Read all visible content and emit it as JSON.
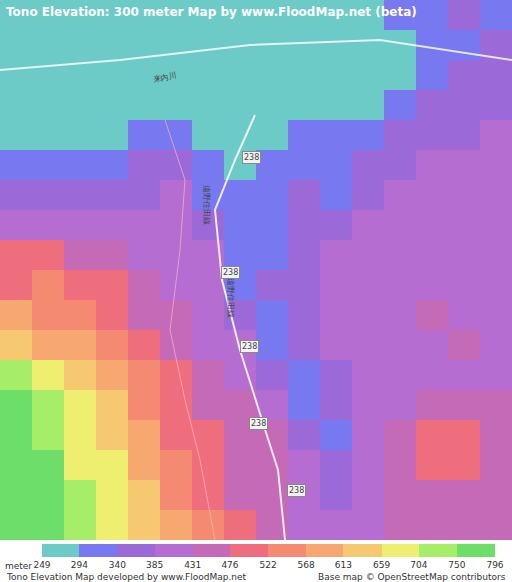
{
  "chart_data": {
    "type": "heatmap",
    "title": "Tono Elevation: 300 meter Map by www.FloodMap.net (beta)",
    "footer_left": "Tono Elevation Map developed by www.FloodMap.net",
    "footer_right": "Base map © OpenStreetMap contributors",
    "tick_labels": false,
    "z": [
      [
        271,
        271,
        271,
        271,
        271,
        271,
        271,
        271,
        271,
        271,
        271,
        271,
        317,
        317,
        362,
        317
      ],
      [
        271,
        271,
        271,
        271,
        271,
        271,
        271,
        271,
        271,
        271,
        271,
        271,
        271,
        317,
        317,
        362
      ],
      [
        271,
        271,
        271,
        271,
        271,
        271,
        271,
        271,
        271,
        271,
        271,
        271,
        271,
        317,
        362,
        362
      ],
      [
        271,
        271,
        271,
        271,
        271,
        271,
        271,
        271,
        271,
        271,
        271,
        271,
        317,
        362,
        362,
        362
      ],
      [
        271,
        271,
        271,
        271,
        317,
        317,
        271,
        271,
        271,
        317,
        317,
        317,
        362,
        362,
        362,
        408
      ],
      [
        317,
        317,
        317,
        317,
        362,
        362,
        317,
        271,
        317,
        317,
        317,
        362,
        362,
        408,
        408,
        408
      ],
      [
        362,
        362,
        362,
        362,
        362,
        408,
        317,
        317,
        317,
        362,
        317,
        362,
        408,
        408,
        408,
        408
      ],
      [
        408,
        408,
        408,
        408,
        408,
        408,
        362,
        317,
        317,
        362,
        362,
        408,
        408,
        408,
        408,
        408
      ],
      [
        499,
        499,
        454,
        454,
        408,
        408,
        408,
        317,
        317,
        362,
        408,
        408,
        408,
        408,
        408,
        408
      ],
      [
        499,
        545,
        499,
        499,
        454,
        408,
        408,
        317,
        362,
        362,
        408,
        408,
        408,
        408,
        408,
        408
      ],
      [
        590,
        545,
        545,
        499,
        454,
        454,
        408,
        362,
        317,
        362,
        408,
        408,
        408,
        454,
        408,
        408
      ],
      [
        636,
        590,
        590,
        545,
        499,
        454,
        408,
        408,
        317,
        362,
        408,
        408,
        408,
        408,
        454,
        408
      ],
      [
        727,
        681,
        636,
        590,
        545,
        499,
        454,
        408,
        362,
        317,
        362,
        408,
        408,
        408,
        408,
        408
      ],
      [
        773,
        727,
        681,
        636,
        545,
        499,
        454,
        454,
        408,
        317,
        362,
        408,
        408,
        454,
        454,
        454
      ],
      [
        773,
        727,
        681,
        636,
        590,
        499,
        499,
        454,
        454,
        362,
        317,
        408,
        454,
        499,
        499,
        454
      ],
      [
        773,
        773,
        681,
        681,
        590,
        545,
        499,
        454,
        454,
        408,
        362,
        408,
        454,
        499,
        499,
        454
      ],
      [
        773,
        773,
        727,
        681,
        636,
        545,
        499,
        454,
        454,
        408,
        362,
        408,
        454,
        454,
        454,
        454
      ],
      [
        773,
        773,
        727,
        681,
        636,
        590,
        545,
        499,
        454,
        408,
        408,
        408,
        454,
        454,
        454,
        454
      ]
    ],
    "colorbar": {
      "title": "meter",
      "range": [
        249,
        796
      ],
      "ticks": [
        249,
        294,
        340,
        385,
        431,
        476,
        522,
        568,
        613,
        659,
        704,
        750,
        796
      ],
      "colors": [
        "#6ccbc6",
        "#7878f0",
        "#9b6ad8",
        "#b56dd2",
        "#c46ab6",
        "#ee6e7e",
        "#f48a72",
        "#f7a870",
        "#f6c872",
        "#eeee70",
        "#a6ee6a",
        "#6ede6a"
      ]
    },
    "map_labels": [
      "238",
      "238",
      "238",
      "238",
      "238",
      "遠野住田線",
      "遠野住田線",
      "来内川"
    ]
  }
}
